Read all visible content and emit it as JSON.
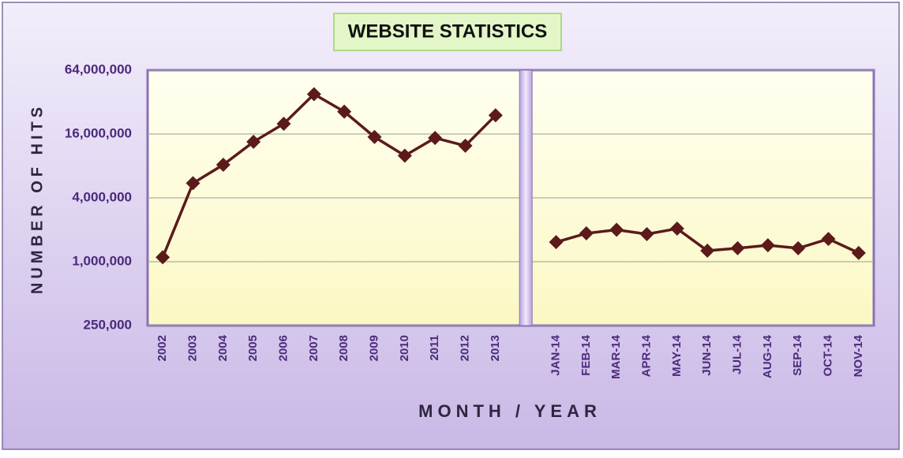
{
  "chart_data": {
    "type": "line",
    "title": "WEBSITE STATISTICS",
    "x_label": "MONTH / YEAR",
    "y_label": "NUMBER OF HITS",
    "categories": [
      "2002",
      "2003",
      "2004",
      "2005",
      "2006",
      "2007",
      "2008",
      "2009",
      "2010",
      "2011",
      "2012",
      "2013",
      "JAN-14",
      "FEB-14",
      "MAR-14",
      "APR-14",
      "MAY-14",
      "JUN-14",
      "JUL-14",
      "AUG-14",
      "SEP-14",
      "OCT-14",
      "NOV-14"
    ],
    "values": [
      1100000,
      5500000,
      8200000,
      13500000,
      20000000,
      38000000,
      26000000,
      15000000,
      10000000,
      14700000,
      12400000,
      24000000,
      1530000,
      1850000,
      2000000,
      1820000,
      2050000,
      1270000,
      1340000,
      1430000,
      1340000,
      1640000,
      1210000
    ],
    "color": "#5c1a1a",
    "log_scale": true,
    "divider_after": "2013",
    "ylim": [
      250000,
      64000000
    ],
    "yticks": [
      {
        "value": 250000,
        "label": "250,000"
      },
      {
        "value": 1000000,
        "label": "1,000,000"
      },
      {
        "value": 4000000,
        "label": "4,000,000"
      },
      {
        "value": 16000000,
        "label": "16,000,000"
      },
      {
        "value": 64000000,
        "label": "64,000,000"
      }
    ],
    "grid": true
  }
}
